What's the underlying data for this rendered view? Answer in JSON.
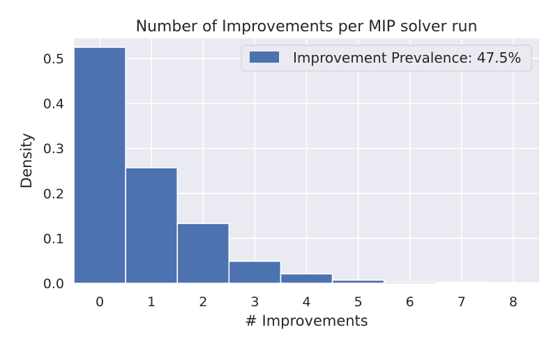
{
  "chart_data": {
    "type": "bar",
    "title": "Number of Improvements per MIP solver run",
    "xlabel": "# Improvements",
    "ylabel": "Density",
    "categories": [
      "0",
      "1",
      "2",
      "3",
      "4",
      "5",
      "6",
      "7",
      "8"
    ],
    "x": [
      0,
      1,
      2,
      3,
      4,
      5,
      6,
      7,
      8
    ],
    "series": [
      {
        "name": "Improvement Prevalence: 47.5%",
        "values": [
          0.525,
          0.257,
          0.133,
          0.049,
          0.021,
          0.007,
          0.003,
          0.002,
          0.001
        ],
        "color": "#4c72b0"
      }
    ],
    "ylim": [
      0,
      0.545
    ],
    "xlim": [
      -0.5,
      8.5
    ],
    "yticks": [
      0.0,
      0.1,
      0.2,
      0.3,
      0.4,
      0.5
    ],
    "ytick_labels": [
      "0.0",
      "0.1",
      "0.2",
      "0.3",
      "0.4",
      "0.5"
    ],
    "xtick_labels": [
      "0",
      "1",
      "2",
      "3",
      "4",
      "5",
      "6",
      "7",
      "8"
    ],
    "grid": true,
    "legend_position": "top-right",
    "background": "#eaeaf2",
    "grid_color": "#ffffff"
  }
}
